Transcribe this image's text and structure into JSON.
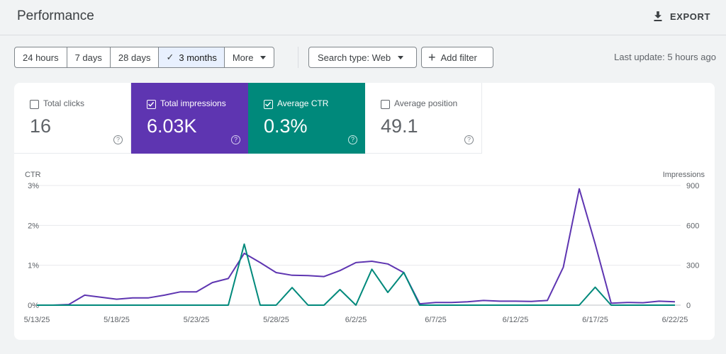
{
  "header": {
    "title": "Performance",
    "export_label": "EXPORT"
  },
  "toolbar": {
    "ranges": [
      "24 hours",
      "7 days",
      "28 days",
      "3 months",
      "More"
    ],
    "selected_range": "3 months",
    "search_type_label": "Search type: Web",
    "add_filter_label": "Add filter",
    "last_update": "Last update: 5 hours ago"
  },
  "metrics": [
    {
      "label": "Total clicks",
      "value": "16",
      "checked": false
    },
    {
      "label": "Total impressions",
      "value": "6.03K",
      "checked": true,
      "color": "#5e35b1"
    },
    {
      "label": "Average CTR",
      "value": "0.3%",
      "checked": true,
      "color": "#00897b"
    },
    {
      "label": "Average position",
      "value": "49.1",
      "checked": false
    }
  ],
  "chart_data": {
    "type": "line",
    "left_axis_title": "CTR",
    "right_axis_title": "Impressions",
    "left_ticks": [
      "3%",
      "2%",
      "1%",
      "0%"
    ],
    "right_ticks": [
      "900",
      "600",
      "300",
      "0"
    ],
    "left_ylim": [
      0,
      3
    ],
    "right_ylim": [
      0,
      900
    ],
    "x_tick_labels": [
      "5/13/25",
      "5/18/25",
      "5/23/25",
      "5/28/25",
      "6/2/25",
      "6/7/25",
      "6/12/25",
      "6/17/25",
      "6/22/25"
    ],
    "x_tick_indices": [
      0,
      5,
      10,
      15,
      20,
      25,
      30,
      35,
      40
    ],
    "x": [
      "5/13/25",
      "5/14/25",
      "5/15/25",
      "5/16/25",
      "5/17/25",
      "5/18/25",
      "5/19/25",
      "5/20/25",
      "5/21/25",
      "5/22/25",
      "5/23/25",
      "5/24/25",
      "5/25/25",
      "5/26/25",
      "5/27/25",
      "5/28/25",
      "5/29/25",
      "5/30/25",
      "5/31/25",
      "6/1/25",
      "6/2/25",
      "6/3/25",
      "6/4/25",
      "6/5/25",
      "6/6/25",
      "6/7/25",
      "6/8/25",
      "6/9/25",
      "6/10/25",
      "6/11/25",
      "6/12/25",
      "6/13/25",
      "6/14/25",
      "6/15/25",
      "6/16/25",
      "6/17/25",
      "6/18/25",
      "6/19/25",
      "6/20/25",
      "6/21/25",
      "6/22/25"
    ],
    "grid": true,
    "series": [
      {
        "name": "Total impressions",
        "axis": "right",
        "color": "#5e35b1",
        "values": [
          0,
          0,
          5,
          75,
          60,
          45,
          55,
          55,
          75,
          100,
          100,
          170,
          200,
          390,
          320,
          245,
          225,
          222,
          215,
          260,
          320,
          330,
          310,
          245,
          10,
          20,
          20,
          25,
          35,
          30,
          30,
          28,
          35,
          285,
          875,
          460,
          15,
          20,
          18,
          30,
          25
        ]
      },
      {
        "name": "Average CTR",
        "axis": "left",
        "color": "#00897b",
        "values": [
          0,
          0,
          0,
          0,
          0,
          0,
          0,
          0,
          0,
          0,
          0,
          0,
          0,
          1.53,
          0,
          0,
          0.44,
          0,
          0,
          0.39,
          0,
          0.9,
          0.32,
          0.82,
          0,
          0,
          0,
          0,
          0,
          0,
          0,
          0,
          0,
          0,
          0,
          0.45,
          0,
          0,
          0,
          0,
          0
        ]
      }
    ]
  }
}
